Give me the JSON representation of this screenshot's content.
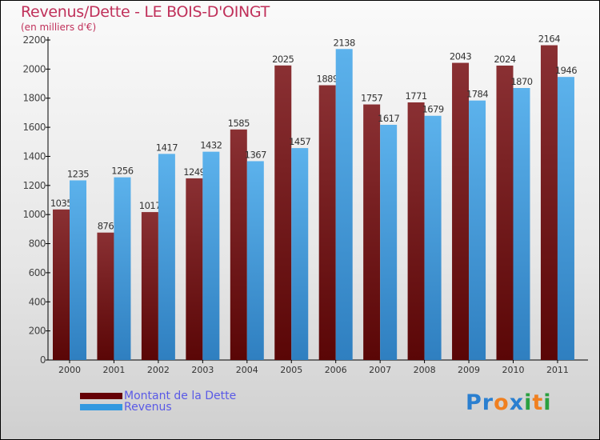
{
  "chart_data": {
    "type": "bar",
    "title": "Revenus/Dette - LE BOIS-D'OINGT",
    "subtitle": "(en milliers d'€)",
    "categories": [
      "2000",
      "2001",
      "2002",
      "2003",
      "2004",
      "2005",
      "2006",
      "2007",
      "2008",
      "2009",
      "2010",
      "2011"
    ],
    "series": [
      {
        "name": "Montant de la Dette",
        "color": "#7a1f22",
        "values": [
          1035,
          876,
          1017,
          1249,
          1585,
          2025,
          1889,
          1757,
          1771,
          2043,
          2024,
          2164
        ]
      },
      {
        "name": "Revenus",
        "color": "#4da6e6",
        "values": [
          1235,
          1256,
          1417,
          1432,
          1367,
          1457,
          2138,
          1617,
          1679,
          1784,
          1870,
          1946
        ]
      }
    ],
    "yticks": [
      0,
      200,
      400,
      600,
      800,
      1000,
      1200,
      1400,
      1600,
      1800,
      2000,
      2200
    ],
    "ylim": [
      0,
      2200
    ],
    "xlabel": "",
    "ylabel": "",
    "legend_position": "bottom-left"
  },
  "logo": {
    "text": "Proxiti",
    "letters": [
      "P",
      "r",
      "o",
      "x",
      "i",
      "t",
      "i"
    ],
    "colors": [
      "#2a7fd0",
      "#2a7fd0",
      "#f08020",
      "#2a7fd0",
      "#2aa040",
      "#f08020",
      "#2aa040"
    ]
  }
}
